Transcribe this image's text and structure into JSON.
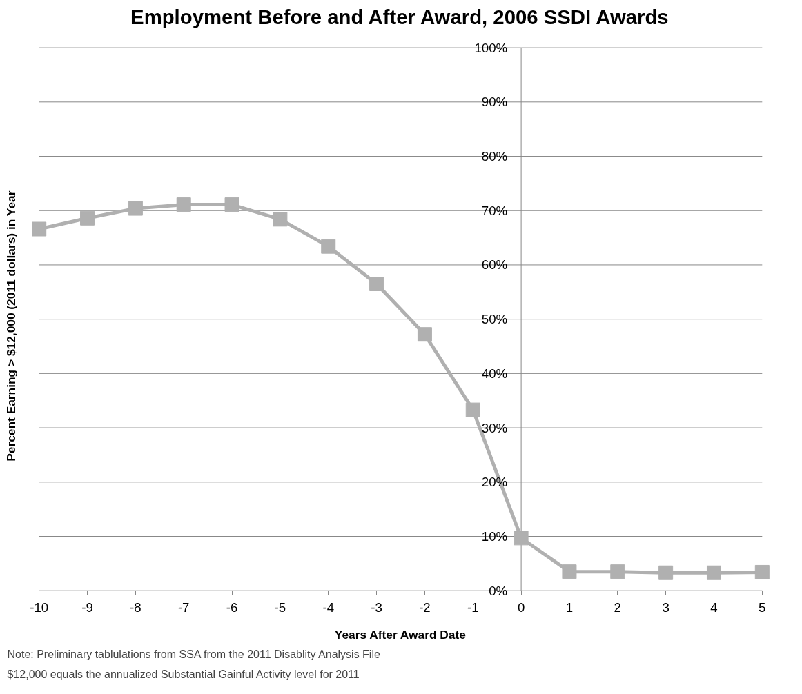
{
  "chart_data": {
    "type": "line",
    "title": "Employment Before and After Award, 2006 SSDI Awards",
    "xlabel": "Years After Award Date",
    "ylabel": "Percent Earning > $12,000 (2011 dollars) in Year",
    "x": [
      -10,
      -9,
      -8,
      -7,
      -6,
      -5,
      -4,
      -3,
      -2,
      -1,
      0,
      1,
      2,
      3,
      4,
      5
    ],
    "series": [
      {
        "color": "#b0b0b0",
        "values": [
          66.6,
          68.6,
          70.4,
          71.1,
          71.1,
          68.4,
          63.4,
          56.5,
          47.2,
          33.3,
          9.7,
          3.5,
          3.5,
          3.3,
          3.3,
          3.4
        ]
      }
    ],
    "xlim": [
      -10,
      5
    ],
    "xticks": [
      -10,
      -9,
      -8,
      -7,
      -6,
      -5,
      -4,
      -3,
      -2,
      -1,
      0,
      1,
      2,
      3,
      4,
      5
    ],
    "ylim": [
      0,
      100
    ],
    "yticks": [
      {
        "value": 0,
        "label": "0%"
      },
      {
        "value": 10,
        "label": "10%"
      },
      {
        "value": 20,
        "label": "20%"
      },
      {
        "value": 30,
        "label": "30%"
      },
      {
        "value": 40,
        "label": "40%"
      },
      {
        "value": 50,
        "label": "50%"
      },
      {
        "value": 60,
        "label": "60%"
      },
      {
        "value": 70,
        "label": "70%"
      },
      {
        "value": 80,
        "label": "80%"
      },
      {
        "value": 90,
        "label": "90%"
      },
      {
        "value": 100,
        "label": "100%"
      }
    ],
    "grid": "y",
    "marker": "square",
    "line_style": "solid",
    "annotations": [
      "Note: Preliminary tablulations from SSA from the 2011 Disablity Analysis File",
      "$12,000 equals the annualized Substantial Gainful Activity level for 2011"
    ]
  }
}
